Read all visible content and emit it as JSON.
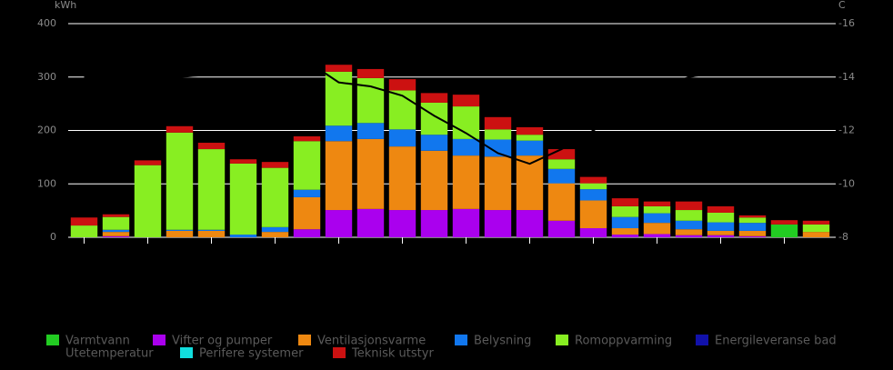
{
  "chart_data": {
    "type": "bar",
    "stacked": true,
    "categories": [
      null,
      null,
      null,
      null,
      null,
      null,
      null,
      null,
      null,
      null,
      null,
      null,
      null,
      null,
      null,
      null,
      null,
      null,
      null,
      null,
      null,
      null,
      null,
      null
    ],
    "ylabel": "kWh",
    "y2label": "C",
    "ylim": [
      0,
      400
    ],
    "yticks": [
      0,
      100,
      200,
      300,
      400
    ],
    "y2lim": [
      -8,
      -16
    ],
    "y2ticks": [
      -16,
      -14,
      -12,
      -10,
      -8
    ],
    "grid": true,
    "series": [
      {
        "name": "Varmtvann",
        "color": "#22cc22",
        "values": [
          0,
          0,
          0,
          0,
          0,
          0,
          0,
          0,
          0,
          0,
          0,
          0,
          0,
          0,
          0,
          0,
          0,
          0,
          0,
          0,
          0,
          0,
          24,
          0
        ]
      },
      {
        "name": "Vifter og pumper",
        "color": "#aa00ee",
        "values": [
          0,
          2,
          0,
          0,
          0,
          0,
          0,
          15,
          51,
          53,
          51,
          51,
          53,
          51,
          51,
          31,
          17,
          5,
          6,
          4,
          4,
          2,
          0,
          0
        ]
      },
      {
        "name": "Ventilasjonsvarme",
        "color": "#ee8811",
        "values": [
          0,
          8,
          0,
          12,
          12,
          0,
          10,
          60,
          129,
          131,
          119,
          111,
          100,
          100,
          102,
          70,
          52,
          12,
          21,
          11,
          8,
          10,
          0,
          10
        ]
      },
      {
        "name": "Belysning",
        "color": "#1177ee",
        "values": [
          0,
          4,
          0,
          2,
          2,
          5,
          9,
          14,
          29,
          30,
          32,
          30,
          31,
          32,
          28,
          27,
          21,
          21,
          18,
          16,
          16,
          15,
          0,
          0
        ]
      },
      {
        "name": "Romoppvarming",
        "color": "#88ee22",
        "values": [
          22,
          24,
          135,
          182,
          151,
          133,
          111,
          91,
          101,
          84,
          73,
          60,
          61,
          19,
          11,
          18,
          11,
          20,
          13,
          20,
          18,
          10,
          0,
          14
        ]
      },
      {
        "name": "Energileveranse bad",
        "color": "#1111aa",
        "values": [
          0,
          0,
          0,
          0,
          0,
          0,
          0,
          0,
          0,
          0,
          0,
          0,
          0,
          0,
          0,
          0,
          0,
          0,
          0,
          0,
          0,
          0,
          0,
          0
        ]
      },
      {
        "name": "Utetemperatur",
        "color": "#000000",
        "type": "line",
        "axis": "y2",
        "values": [
          -14.0,
          -14.0,
          -14.0,
          -14.0,
          -14.1,
          -14.2,
          -14.4,
          -14.6,
          -13.8,
          -13.65,
          -13.3,
          -12.55,
          -11.9,
          -11.15,
          -10.75,
          -11.3,
          -12.0,
          -12.8,
          -13.5,
          -14.0,
          -14.2,
          -14.3,
          -14.3,
          -14.3
        ]
      },
      {
        "name": "Perifere systemer",
        "color": "#11dddd",
        "values": [
          0,
          0,
          0,
          0,
          0,
          0,
          0,
          0,
          0,
          0,
          0,
          0,
          0,
          0,
          0,
          0,
          0,
          0,
          0,
          0,
          0,
          0,
          0,
          0
        ]
      },
      {
        "name": "Teknisk utstyr",
        "color": "#cc1111",
        "values": [
          15,
          5,
          9,
          12,
          12,
          8,
          11,
          9,
          13,
          17,
          21,
          18,
          22,
          23,
          14,
          19,
          12,
          15,
          9,
          16,
          12,
          4,
          8,
          7
        ]
      }
    ]
  }
}
